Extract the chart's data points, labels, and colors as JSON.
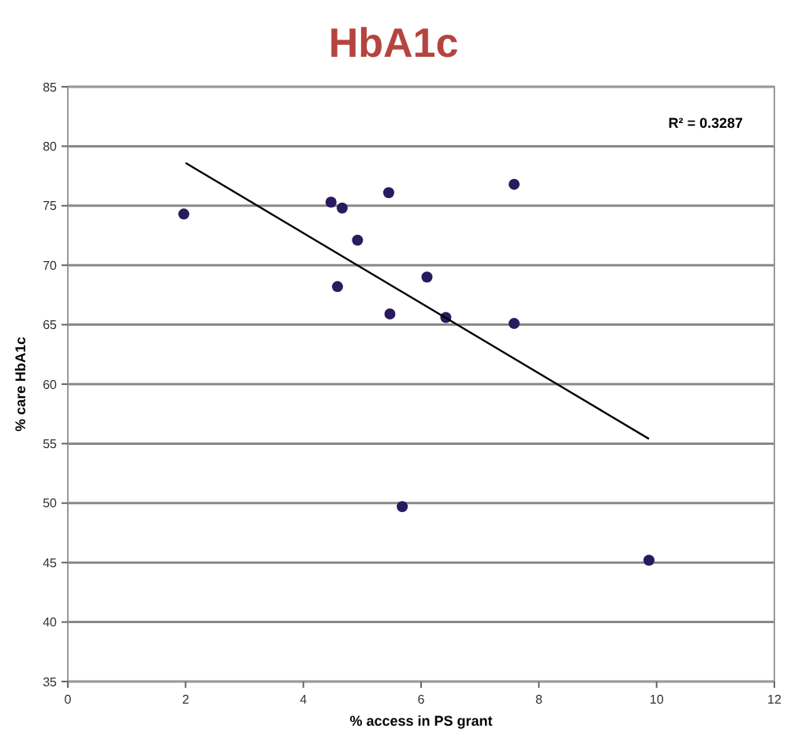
{
  "chart_data": {
    "type": "scatter",
    "title": "HbA1c",
    "xlabel": "% access in PS grant",
    "ylabel": "% care HbA1c",
    "xlim": [
      0,
      12
    ],
    "xticks": [
      0,
      2,
      4,
      6,
      8,
      10,
      12
    ],
    "ylim": [
      35,
      85
    ],
    "yticks": [
      35,
      40,
      45,
      50,
      55,
      60,
      65,
      70,
      75,
      80,
      85
    ],
    "grid": "y",
    "series": [
      {
        "color": "#2a1a5e",
        "marker": "circle",
        "x": [
          1.97,
          4.47,
          4.66,
          4.92,
          4.58,
          5.45,
          5.47,
          6.1,
          6.42,
          7.58,
          7.58,
          5.68,
          9.87
        ],
        "values": [
          74.3,
          75.3,
          74.8,
          72.1,
          68.2,
          76.1,
          65.9,
          69.0,
          65.6,
          76.8,
          65.1,
          49.7,
          45.2
        ]
      },
      {
        "type": "line",
        "color": "#000000",
        "x": [
          2,
          9.87
        ],
        "values": [
          78.6,
          55.4
        ]
      }
    ],
    "annotations": [
      "R² = 0.3287"
    ]
  }
}
